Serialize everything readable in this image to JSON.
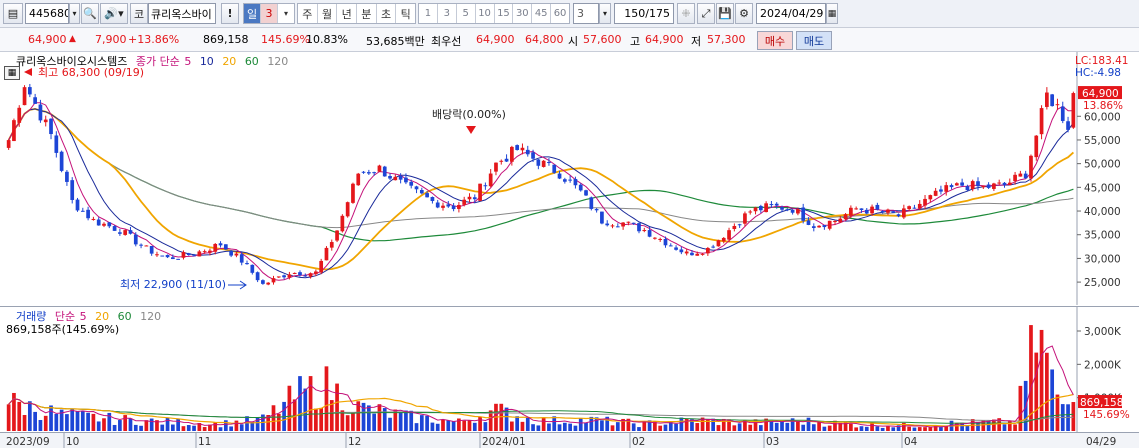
{
  "toolbar": {
    "code": "445680",
    "corp_label": "코",
    "corp_name": "큐리옥스바이",
    "warn_label": "!",
    "periods": [
      "일",
      "3",
      "주",
      "월",
      "년",
      "분",
      "초",
      "틱"
    ],
    "numbers": [
      "1",
      "3",
      "5",
      "10",
      "15",
      "30",
      "45",
      "60"
    ],
    "interval": "3",
    "count": "150/175",
    "date": "2024/04/29"
  },
  "quote": {
    "price": "64,900",
    "change": "7,900",
    "change_pct": "+13.86%",
    "volume": "869,158",
    "vol_ratio": "145.69%",
    "turnover": "10.83%",
    "amount": "53,685백만",
    "best_label": "최우선",
    "ask": "64,900",
    "bid": "64,800",
    "open_label": "시",
    "open": "57,600",
    "high_label": "고",
    "high": "64,900",
    "low_label": "저",
    "low": "57,300",
    "buy_label": "매수",
    "sell_label": "매도"
  },
  "price_legend": {
    "name": "큐리옥스바이오시스템즈",
    "ma_label": "종가 단순",
    "ma": [
      "5",
      "10",
      "20",
      "60",
      "120"
    ],
    "lc": "LC:183.41",
    "hc": "HC:-4.98",
    "last_price": "64,900",
    "last_pct": "13.86%",
    "high_note": "최고 68,300 (09/19)",
    "low_note": "최저 22,900 (11/10)",
    "dividend_note": "배당락(0.00%)"
  },
  "volume_legend": {
    "name": "거래량",
    "ma_label": "단순",
    "ma": [
      "5",
      "20",
      "60",
      "120"
    ],
    "current": "869,158주(145.69%)",
    "last_vol": "869,158",
    "last_pct": "145.69%"
  },
  "colors": {
    "up": "#e4171b",
    "down": "#1d45d6",
    "ma5": "#c4127a",
    "ma10": "#1a2a9a",
    "ma20": "#f0a500",
    "ma60": "#1e8a3a",
    "ma120": "#888888"
  },
  "chart_data": [
    {
      "type": "candlestick",
      "title": "큐리옥스바이오시스템즈",
      "y_ticks": [
        25000,
        30000,
        35000,
        40000,
        45000,
        50000,
        55000,
        60000
      ],
      "y_tick_labels": [
        "25,000",
        "30,000",
        "35,000",
        "40,000",
        "45,000",
        "50,000",
        "55,000",
        "60,000"
      ],
      "ylim": [
        20800,
        68500
      ],
      "x_labels": [
        "2023/09",
        "10",
        "11",
        "12",
        "2024/01",
        "02",
        "03",
        "04",
        "04/29"
      ],
      "close_anchors": [
        [
          0,
          55000
        ],
        [
          3,
          67000
        ],
        [
          8,
          56000
        ],
        [
          12,
          42000
        ],
        [
          16,
          38000
        ],
        [
          21,
          36000
        ],
        [
          26,
          32000
        ],
        [
          30,
          30000
        ],
        [
          35,
          31000
        ],
        [
          40,
          33000
        ],
        [
          44,
          29500
        ],
        [
          48,
          24500
        ],
        [
          53,
          27000
        ],
        [
          58,
          27000
        ],
        [
          62,
          36000
        ],
        [
          66,
          48000
        ],
        [
          70,
          49000
        ],
        [
          75,
          45000
        ],
        [
          80,
          42000
        ],
        [
          84,
          41000
        ],
        [
          88,
          43000
        ],
        [
          92,
          50000
        ],
        [
          96,
          53000
        ],
        [
          100,
          50500
        ],
        [
          104,
          48000
        ],
        [
          108,
          44000
        ],
        [
          112,
          38000
        ],
        [
          116,
          37500
        ],
        [
          120,
          36000
        ],
        [
          124,
          33500
        ],
        [
          128,
          31000
        ],
        [
          132,
          32000
        ],
        [
          136,
          36000
        ],
        [
          140,
          40000
        ],
        [
          144,
          41000
        ],
        [
          148,
          40500
        ],
        [
          152,
          37000
        ],
        [
          156,
          38000
        ],
        [
          160,
          40500
        ],
        [
          164,
          40000
        ],
        [
          168,
          39000
        ],
        [
          172,
          41500
        ],
        [
          176,
          44000
        ],
        [
          180,
          45500
        ],
        [
          184,
          45000
        ],
        [
          188,
          45500
        ],
        [
          192,
          48000
        ],
        [
          194,
          56000
        ],
        [
          196,
          64500
        ],
        [
          198,
          62000
        ],
        [
          200,
          58000
        ],
        [
          201,
          64900
        ]
      ],
      "volume_anchors": [
        [
          0,
          0.32
        ],
        [
          10,
          0.18
        ],
        [
          20,
          0.13
        ],
        [
          30,
          0.1
        ],
        [
          40,
          0.08
        ],
        [
          48,
          0.13
        ],
        [
          55,
          0.42
        ],
        [
          60,
          0.5
        ],
        [
          66,
          0.26
        ],
        [
          75,
          0.16
        ],
        [
          85,
          0.1
        ],
        [
          92,
          0.23
        ],
        [
          100,
          0.11
        ],
        [
          110,
          0.12
        ],
        [
          120,
          0.08
        ],
        [
          130,
          0.12
        ],
        [
          140,
          0.09
        ],
        [
          150,
          0.11
        ],
        [
          160,
          0.07
        ],
        [
          170,
          0.06
        ],
        [
          180,
          0.09
        ],
        [
          190,
          0.1
        ],
        [
          194,
          1.05
        ],
        [
          196,
          0.82
        ],
        [
          198,
          0.32
        ],
        [
          201,
          0.28
        ]
      ]
    },
    {
      "type": "bar",
      "title": "거래량",
      "y_ticks": [
        1000000,
        2000000,
        3000000
      ],
      "y_tick_labels": [
        "1,000K",
        "2,000K",
        "3,000K"
      ],
      "ylim": [
        0,
        3300000
      ]
    }
  ]
}
